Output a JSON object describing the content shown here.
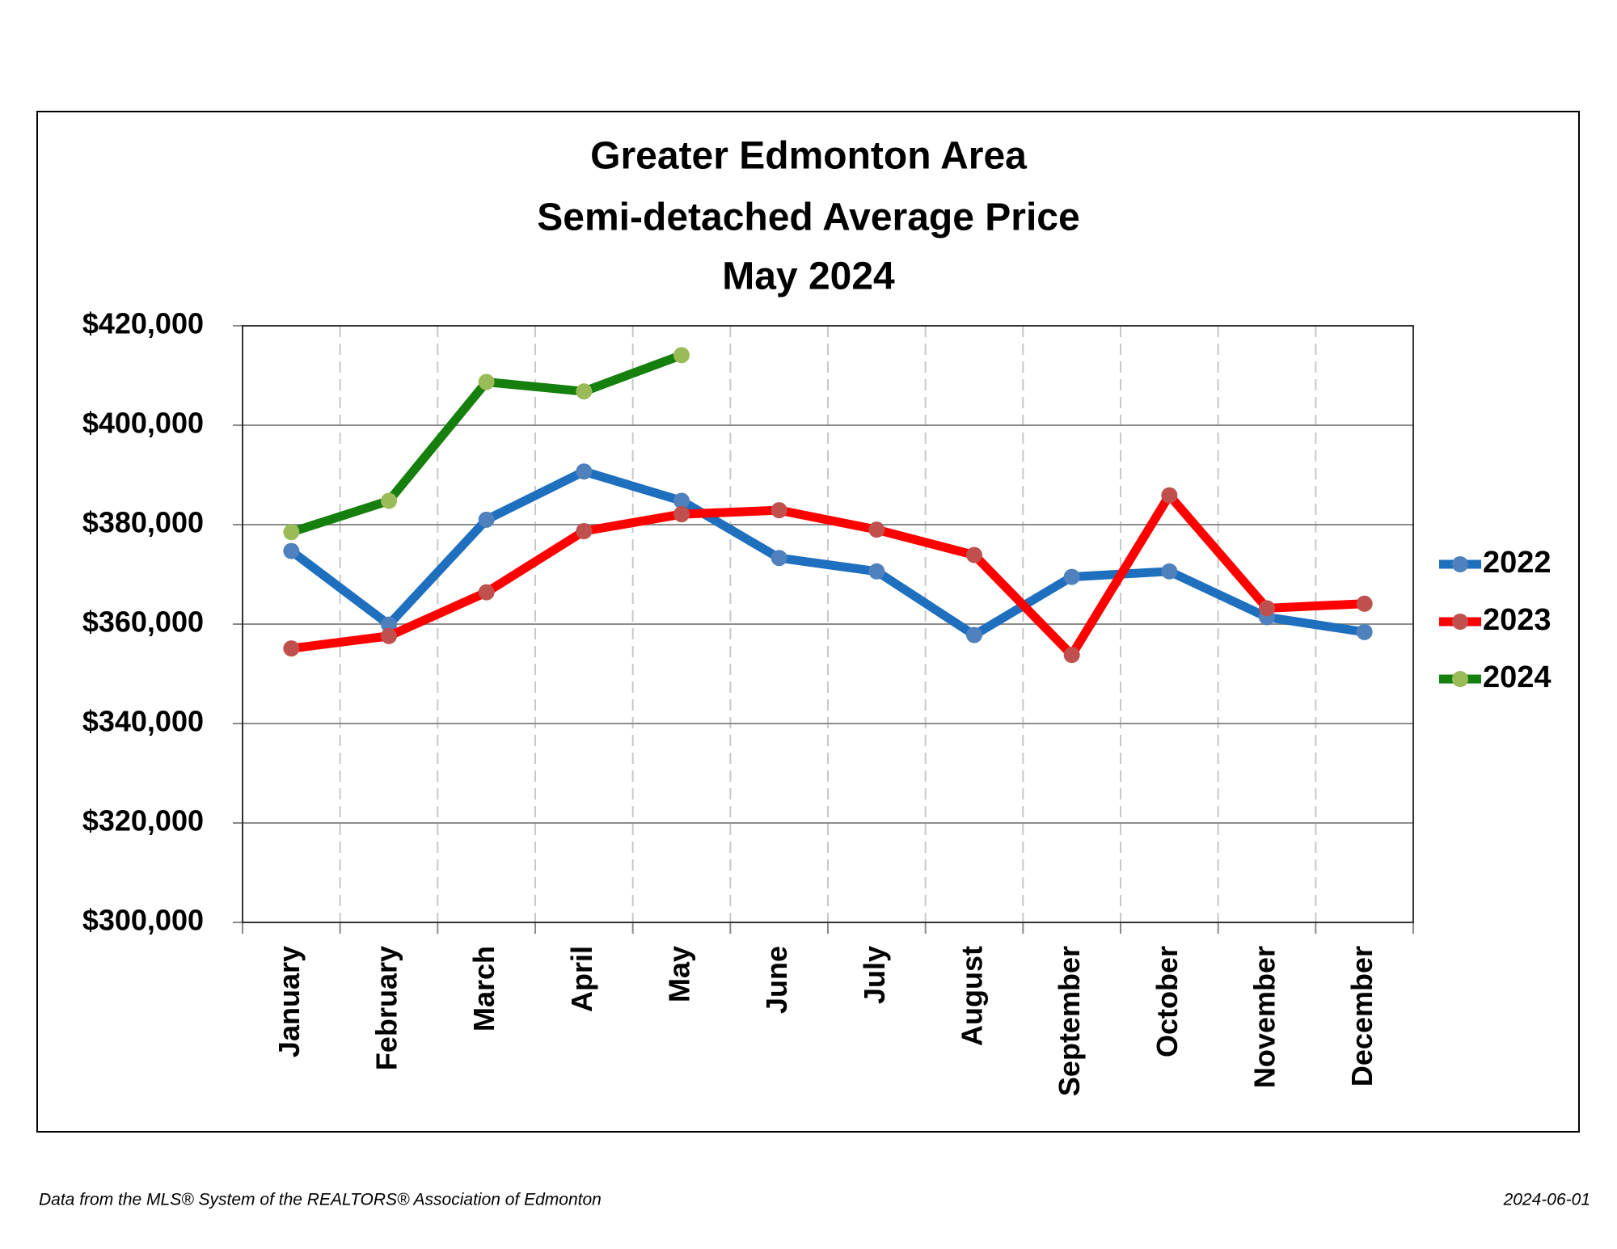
{
  "chart_data": {
    "type": "line",
    "title": [
      "Greater Edmonton Area",
      "Semi-detached Average Price",
      "May 2024"
    ],
    "categories": [
      "January",
      "February",
      "March",
      "April",
      "May",
      "June",
      "July",
      "August",
      "September",
      "October",
      "November",
      "December"
    ],
    "series": [
      {
        "name": "2022",
        "color": "#1f6fbf",
        "marker_color": "#4f81bd",
        "values": [
          374700,
          359900,
          381000,
          390700,
          384800,
          373300,
          370600,
          357800,
          369500,
          370600,
          361400,
          358400
        ]
      },
      {
        "name": "2023",
        "color": "#ff0000",
        "marker_color": "#c0504d",
        "values": [
          355100,
          357600,
          366400,
          378700,
          382100,
          382900,
          379000,
          373900,
          353800,
          385900,
          363200,
          364100
        ]
      },
      {
        "name": "2024",
        "color": "#16800e",
        "marker_color": "#9bbb59",
        "values": [
          378500,
          384800,
          408700,
          406800,
          414100,
          null,
          null,
          null,
          null,
          null,
          null,
          null
        ]
      }
    ],
    "ylim": [
      300000,
      420000
    ],
    "yticks": [
      {
        "value": 300000,
        "label": "$300,000"
      },
      {
        "value": 320000,
        "label": "$320,000"
      },
      {
        "value": 340000,
        "label": "$340,000"
      },
      {
        "value": 360000,
        "label": "$360,000"
      },
      {
        "value": 380000,
        "label": "$380,000"
      },
      {
        "value": 400000,
        "label": "$400,000"
      },
      {
        "value": 420000,
        "label": "$420,000"
      }
    ],
    "grid": true,
    "legend": "right",
    "source": "Data from the MLS® System of the REALTORS® Association of Edmonton",
    "date": "2024-06-01"
  }
}
